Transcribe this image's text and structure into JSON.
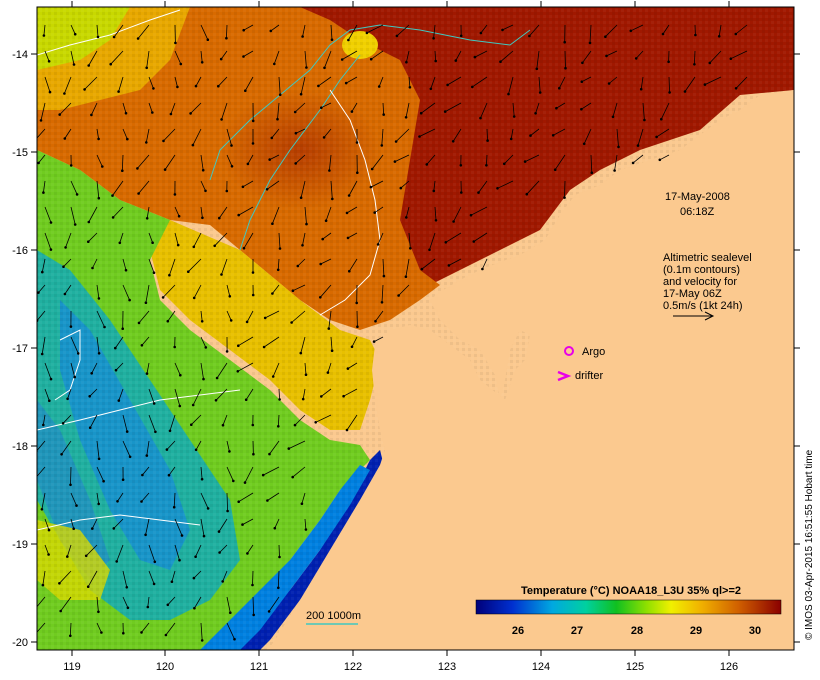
{
  "colors": {
    "land": "#fbc98f",
    "frame": "#000000",
    "argo": "#e800e8",
    "drifter": "#e800e8",
    "isobath": "#40c8c0",
    "contour": "#ffffff"
  },
  "axes": {
    "x_ticks": [
      "119",
      "120",
      "121",
      "122",
      "123",
      "124",
      "125",
      "126"
    ],
    "y_ticks": [
      "-14",
      "-15",
      "-16",
      "-17",
      "-18",
      "-19",
      "-20"
    ]
  },
  "annotations": {
    "timestamp_line1": "17-May-2008",
    "timestamp_line2": "06:18Z",
    "altimetric_line1": "Altimetric sealevel",
    "altimetric_line2": "(0.1m contours)",
    "altimetric_line3": "and velocity for",
    "altimetric_line4": "17-May 06Z",
    "altimetric_line5": "0.5m/s (1kt 24h)",
    "argo_label": "Argo",
    "drifter_label": "drifter",
    "isobath_label": "200 1000m"
  },
  "colorbar": {
    "title": "Temperature (°C) NOAA18_L3U 35% ql>=2",
    "ticks": [
      "26",
      "27",
      "28",
      "29",
      "30"
    ]
  },
  "credit": "© IMOS 03-Apr-2015 16:51:55 Hobart time"
}
